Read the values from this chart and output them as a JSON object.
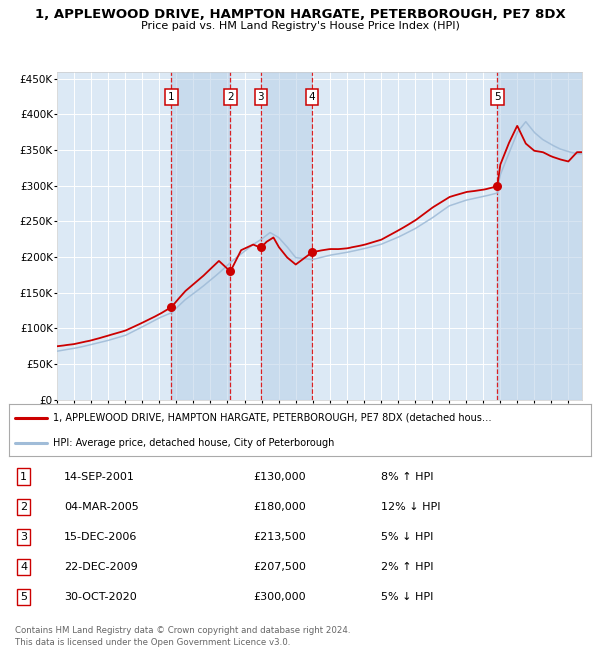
{
  "title": "1, APPLEWOOD DRIVE, HAMPTON HARGATE, PETERBOROUGH, PE7 8DX",
  "subtitle": "Price paid vs. HM Land Registry's House Price Index (HPI)",
  "ylabel_ticks": [
    "£0",
    "£50K",
    "£100K",
    "£150K",
    "£200K",
    "£250K",
    "£300K",
    "£350K",
    "£400K",
    "£450K"
  ],
  "ytick_values": [
    0,
    50000,
    100000,
    150000,
    200000,
    250000,
    300000,
    350000,
    400000,
    450000
  ],
  "ylim": [
    0,
    460000
  ],
  "xlim_start": 1995.0,
  "xlim_end": 2025.8,
  "background_color": "#ffffff",
  "plot_bg_color": "#dce9f5",
  "grid_color": "#ffffff",
  "hpi_line_color": "#a0bcd8",
  "price_line_color": "#cc0000",
  "sale_dot_color": "#cc0000",
  "dashed_line_color": "#cc0000",
  "transactions": [
    {
      "num": 1,
      "date_str": "14-SEP-2001",
      "date_x": 2001.71,
      "price": 130000,
      "pct": "8%",
      "dir": "↑"
    },
    {
      "num": 2,
      "date_str": "04-MAR-2005",
      "date_x": 2005.17,
      "price": 180000,
      "pct": "12%",
      "dir": "↓"
    },
    {
      "num": 3,
      "date_str": "15-DEC-2006",
      "date_x": 2006.96,
      "price": 213500,
      "pct": "5%",
      "dir": "↓"
    },
    {
      "num": 4,
      "date_str": "22-DEC-2009",
      "date_x": 2009.97,
      "price": 207500,
      "pct": "2%",
      "dir": "↑"
    },
    {
      "num": 5,
      "date_str": "30-OCT-2020",
      "date_x": 2020.83,
      "price": 300000,
      "pct": "5%",
      "dir": "↓"
    }
  ],
  "legend_line1": "1, APPLEWOOD DRIVE, HAMPTON HARGATE, PETERBOROUGH, PE7 8DX (detached hous…",
  "legend_line2": "HPI: Average price, detached house, City of Peterborough",
  "footer_line1": "Contains HM Land Registry data © Crown copyright and database right 2024.",
  "footer_line2": "This data is licensed under the Open Government Licence v3.0.",
  "table_rows": [
    [
      "1",
      "14-SEP-2001",
      "£130,000",
      "8% ↑ HPI"
    ],
    [
      "2",
      "04-MAR-2005",
      "£180,000",
      "12% ↓ HPI"
    ],
    [
      "3",
      "15-DEC-2006",
      "£213,500",
      "5% ↓ HPI"
    ],
    [
      "4",
      "22-DEC-2009",
      "£207,500",
      "2% ↑ HPI"
    ],
    [
      "5",
      "30-OCT-2020",
      "£300,000",
      "5% ↓ HPI"
    ]
  ],
  "hpi_knots_x": [
    1995.0,
    1996.0,
    1997.0,
    1998.0,
    1999.0,
    2000.0,
    2001.0,
    2001.71,
    2002.5,
    2003.5,
    2004.5,
    2005.17,
    2005.8,
    2006.5,
    2006.96,
    2007.5,
    2008.0,
    2008.5,
    2009.0,
    2009.97,
    2010.5,
    2011.0,
    2011.5,
    2012.0,
    2013.0,
    2014.0,
    2015.0,
    2016.0,
    2017.0,
    2018.0,
    2019.0,
    2020.0,
    2020.83,
    2021.0,
    2021.5,
    2022.0,
    2022.5,
    2023.0,
    2023.5,
    2024.0,
    2024.5,
    2025.0,
    2025.5
  ],
  "hpi_knots_y": [
    68000,
    72000,
    77000,
    83000,
    90000,
    102000,
    115000,
    122000,
    140000,
    158000,
    178000,
    193000,
    205000,
    218000,
    225000,
    235000,
    228000,
    215000,
    200000,
    197000,
    200000,
    203000,
    205000,
    207000,
    212000,
    218000,
    228000,
    240000,
    255000,
    272000,
    280000,
    285000,
    290000,
    315000,
    345000,
    375000,
    390000,
    375000,
    365000,
    358000,
    352000,
    348000,
    345000
  ],
  "price_knots_x": [
    1995.0,
    1996.0,
    1997.0,
    1998.0,
    1999.0,
    2000.0,
    2001.0,
    2001.71,
    2002.5,
    2003.5,
    2004.5,
    2005.17,
    2005.8,
    2006.5,
    2006.96,
    2007.3,
    2007.7,
    2008.0,
    2008.5,
    2009.0,
    2009.97,
    2010.5,
    2011.0,
    2011.5,
    2012.0,
    2013.0,
    2014.0,
    2015.0,
    2016.0,
    2017.0,
    2018.0,
    2019.0,
    2020.0,
    2020.83,
    2021.0,
    2021.5,
    2022.0,
    2022.5,
    2023.0,
    2023.5,
    2024.0,
    2024.5,
    2025.0,
    2025.5
  ],
  "price_knots_y": [
    75000,
    78000,
    83000,
    90000,
    97000,
    108000,
    120000,
    130000,
    152000,
    172000,
    195000,
    180000,
    210000,
    218000,
    213500,
    222000,
    228000,
    215000,
    200000,
    190000,
    207500,
    210000,
    212000,
    212000,
    213000,
    218000,
    225000,
    238000,
    252000,
    270000,
    285000,
    292000,
    295000,
    300000,
    330000,
    360000,
    385000,
    360000,
    350000,
    348000,
    342000,
    338000,
    335000,
    348000
  ]
}
